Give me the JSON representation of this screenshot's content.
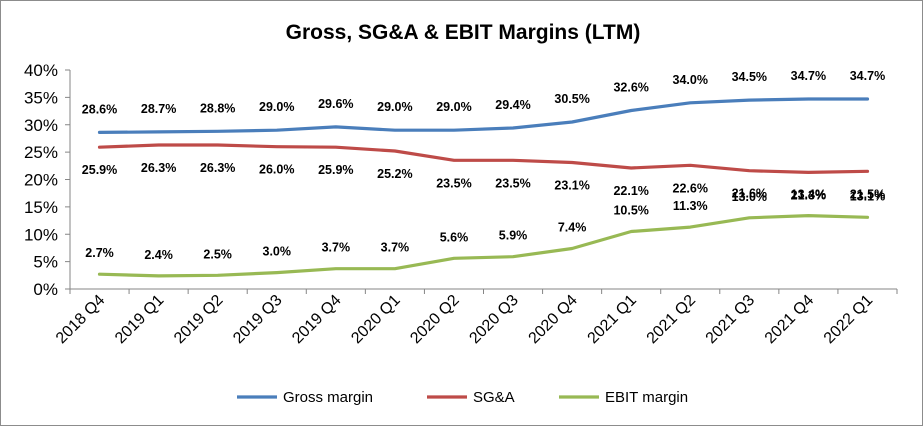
{
  "chart_data": {
    "type": "line",
    "title": "Gross, SG&A & EBIT Margins (LTM)",
    "xlabel": "",
    "ylabel": "",
    "ylim": [
      0,
      40
    ],
    "yticks": [
      "0%",
      "5%",
      "10%",
      "15%",
      "20%",
      "25%",
      "30%",
      "35%",
      "40%"
    ],
    "grid": false,
    "legend_position": "bottom",
    "categories": [
      "2018 Q4",
      "2019 Q1",
      "2019 Q2",
      "2019 Q3",
      "2019 Q4",
      "2020 Q1",
      "2020 Q2",
      "2020 Q3",
      "2020 Q4",
      "2021 Q1",
      "2021 Q2",
      "2021 Q3",
      "2021 Q4",
      "2022 Q1"
    ],
    "series": [
      {
        "name": "Gross margin",
        "color": "#4a7ebb",
        "values": [
          28.6,
          28.7,
          28.8,
          29.0,
          29.6,
          29.0,
          29.0,
          29.4,
          30.5,
          32.6,
          34.0,
          34.5,
          34.7,
          34.7
        ],
        "labels": [
          "28.6%",
          "28.7%",
          "28.8%",
          "29.0%",
          "29.6%",
          "29.0%",
          "29.0%",
          "29.4%",
          "30.5%",
          "32.6%",
          "34.0%",
          "34.5%",
          "34.7%",
          "34.7%"
        ]
      },
      {
        "name": "SG&A",
        "color": "#be4b48",
        "values": [
          25.9,
          26.3,
          26.3,
          26.0,
          25.9,
          25.2,
          23.5,
          23.5,
          23.1,
          22.1,
          22.6,
          21.6,
          21.3,
          21.5
        ],
        "labels": [
          "25.9%",
          "26.3%",
          "26.3%",
          "26.0%",
          "25.9%",
          "25.2%",
          "23.5%",
          "23.5%",
          "23.1%",
          "22.1%",
          "22.6%",
          "21.6%",
          "21.3%",
          "21.5%"
        ]
      },
      {
        "name": "EBIT margin",
        "color": "#98b954",
        "values": [
          2.7,
          2.4,
          2.5,
          3.0,
          3.7,
          3.7,
          5.6,
          5.9,
          7.4,
          10.5,
          11.3,
          13.0,
          13.4,
          13.1
        ],
        "labels": [
          "2.7%",
          "2.4%",
          "2.5%",
          "3.0%",
          "3.7%",
          "3.7%",
          "5.6%",
          "5.9%",
          "7.4%",
          "10.5%",
          "11.3%",
          "13.0%",
          "13.4%",
          "13.1%"
        ]
      }
    ]
  }
}
